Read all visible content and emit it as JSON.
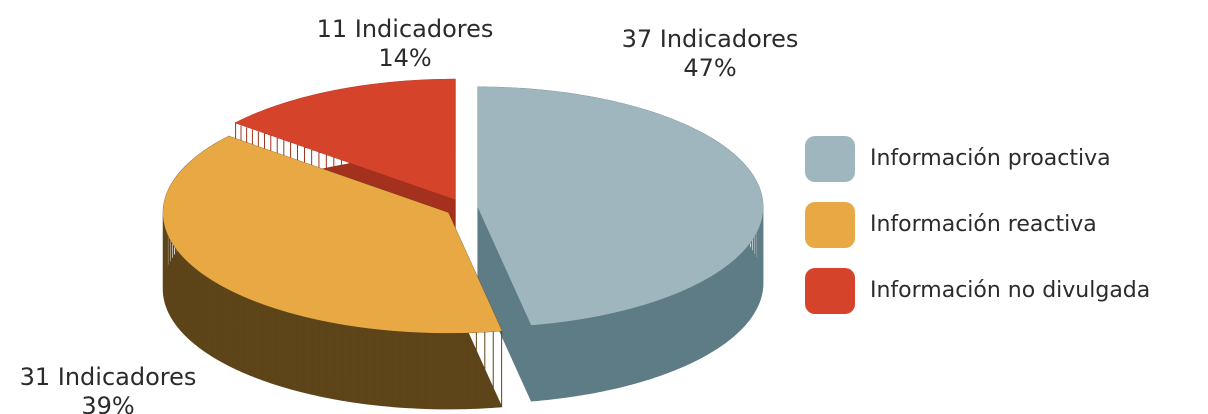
{
  "chart_data": {
    "type": "pie3d",
    "categories": [
      "Información proactiva",
      "Información reactiva",
      "Información no divulgada"
    ],
    "values": [
      47,
      39,
      14
    ],
    "value_labels": [
      "47%",
      "39%",
      "14%"
    ],
    "counts": [
      37,
      31,
      11
    ],
    "count_labels": [
      "37 Indicadores",
      "31 Indicadores",
      "11 Indicadores"
    ],
    "colors": [
      "#9fb6be",
      "#e8a945",
      "#d5432b"
    ],
    "side_colors": [
      "#5e7c85",
      "#5d4419",
      "#a3311d"
    ],
    "legend": "right"
  }
}
